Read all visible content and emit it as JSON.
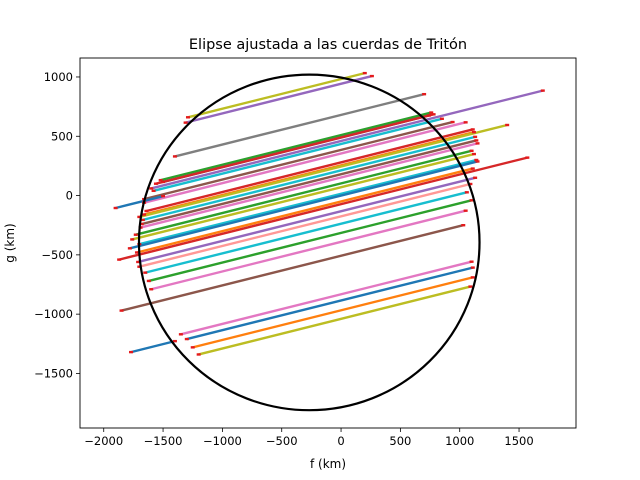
{
  "chart_data": {
    "type": "line",
    "title": "Elipse ajustada a las cuerdas de Tritón",
    "xlabel": "f (km)",
    "ylabel": "g (km)",
    "xlim": [
      -2200,
      1980
    ],
    "ylim": [
      -1960,
      1160
    ],
    "xticks": [
      -2000,
      -1500,
      -1000,
      -500,
      0,
      500,
      1000,
      1500
    ],
    "yticks": [
      -1500,
      -1000,
      -500,
      0,
      500,
      1000
    ],
    "xtick_labels": [
      "−2000",
      "−1500",
      "−1000",
      "−500",
      "0",
      "500",
      "1000",
      "1500"
    ],
    "ytick_labels": [
      "−1500",
      "−1000",
      "−500",
      "0",
      "500",
      "1000"
    ],
    "grid": false,
    "legend": "none",
    "ellipse": {
      "center": [
        -268,
        -395
      ],
      "semi_axis_f": 1435,
      "semi_axis_g": 1415,
      "color": "#000000"
    },
    "chord_slope": 0.25,
    "chords": [
      {
        "f0": -1290,
        "f1": 200,
        "g0": 660,
        "color": "#bcbd22"
      },
      {
        "f0": -1310,
        "f1": 260,
        "g0": 615,
        "color": "#9467bd"
      },
      {
        "f0": -1520,
        "f1": 760,
        "g0": 130,
        "color": "#2ca02c"
      },
      {
        "f0": -1500,
        "f1": 740,
        "g0": 115,
        "color": "#1f77b4"
      },
      {
        "f0": -1560,
        "f1": 780,
        "g0": 100,
        "color": "#d62728"
      },
      {
        "f0": -1600,
        "f1": 1700,
        "g0": 60,
        "color": "#9467bd"
      },
      {
        "f0": -1580,
        "f1": 850,
        "g0": 40,
        "color": "#17becf"
      },
      {
        "f0": -1400,
        "f1": 700,
        "g0": 330,
        "color": "#7f7f7f"
      },
      {
        "f0": -1660,
        "f1": 940,
        "g0": -30,
        "color": "#8c564b"
      },
      {
        "f0": -1660,
        "f1": 1050,
        "g0": -60,
        "color": "#e377c2"
      },
      {
        "f0": -1900,
        "f1": -1500,
        "g0": -105,
        "color": "#1f77b4"
      },
      {
        "f0": -1640,
        "f1": 1110,
        "g0": -130,
        "color": "#d62728"
      },
      {
        "f0": -1660,
        "f1": 1120,
        "g0": -160,
        "color": "#ff7f0e"
      },
      {
        "f0": -1700,
        "f1": 1400,
        "g0": -180,
        "color": "#bcbd22"
      },
      {
        "f0": -1670,
        "f1": 1130,
        "g0": -205,
        "color": "#17becf"
      },
      {
        "f0": -1680,
        "f1": 1140,
        "g0": -240,
        "color": "#8c564b"
      },
      {
        "f0": -1690,
        "f1": 1150,
        "g0": -270,
        "color": "#e377c2"
      },
      {
        "f0": -1730,
        "f1": 1100,
        "g0": -330,
        "color": "#2ca02c"
      },
      {
        "f0": -1760,
        "f1": 1120,
        "g0": -370,
        "color": "#bcbd22"
      },
      {
        "f0": -1700,
        "f1": 1140,
        "g0": -410,
        "color": "#17becf"
      },
      {
        "f0": -1780,
        "f1": 1150,
        "g0": -445,
        "color": "#1f77b4"
      },
      {
        "f0": -1720,
        "f1": 1110,
        "g0": -480,
        "color": "#ff7f0e"
      },
      {
        "f0": -1870,
        "f1": 1570,
        "g0": -540,
        "color": "#d62728"
      },
      {
        "f0": -1710,
        "f1": 1130,
        "g0": -560,
        "color": "#9467bd"
      },
      {
        "f0": -1700,
        "f1": 1090,
        "g0": -600,
        "color": "#ff9896"
      },
      {
        "f0": -1650,
        "f1": 1060,
        "g0": -650,
        "color": "#17becf"
      },
      {
        "f0": -1620,
        "f1": 1100,
        "g0": -720,
        "color": "#2ca02c"
      },
      {
        "f0": -1600,
        "f1": 1050,
        "g0": -790,
        "color": "#e377c2"
      },
      {
        "f0": -1850,
        "f1": 1030,
        "g0": -970,
        "color": "#8c564b"
      },
      {
        "f0": -1350,
        "f1": 1100,
        "g0": -1170,
        "color": "#e377c2"
      },
      {
        "f0": -1300,
        "f1": 1110,
        "g0": -1210,
        "color": "#1f77b4"
      },
      {
        "f0": -1250,
        "f1": 1110,
        "g0": -1280,
        "color": "#ff7f0e"
      },
      {
        "f0": -1770,
        "f1": -1400,
        "g0": -1320,
        "color": "#1f77b4"
      },
      {
        "f0": -1200,
        "f1": 1090,
        "g0": -1340,
        "color": "#bcbd22"
      }
    ]
  }
}
